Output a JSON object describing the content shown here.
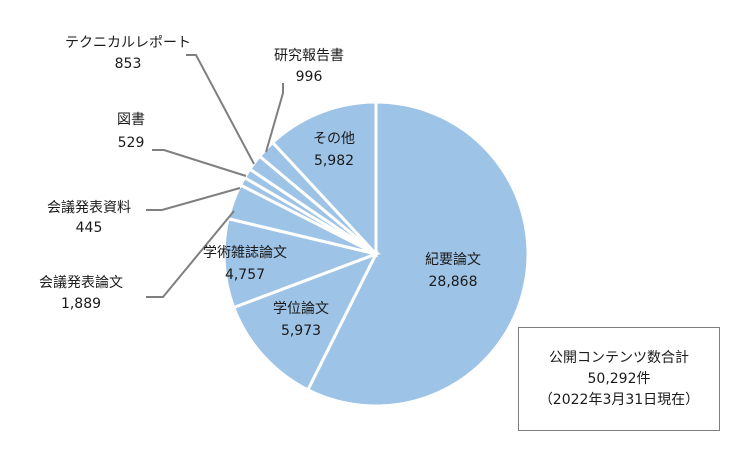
{
  "chart_data": {
    "type": "pie",
    "start_angle_deg": 0,
    "direction": "clockwise",
    "slices": [
      {
        "label": "紀要論文",
        "value": "28,868",
        "value_num": 28868
      },
      {
        "label": "学位論文",
        "value": "5,973",
        "value_num": 5973
      },
      {
        "label": "学術雑誌論文",
        "value": "4,757",
        "value_num": 4757
      },
      {
        "label": "会議発表論文",
        "value": "1,889",
        "value_num": 1889
      },
      {
        "label": "会議発表資料",
        "value": "445",
        "value_num": 445
      },
      {
        "label": "図書",
        "value": "529",
        "value_num": 529
      },
      {
        "label": "テクニカルレポート",
        "value": "853",
        "value_num": 853
      },
      {
        "label": "研究報告書",
        "value": "996",
        "value_num": 996
      },
      {
        "label": "その他",
        "value": "5,982",
        "value_num": 5982
      }
    ],
    "color": "#9dc3e6",
    "leader_color": "#7f7f7f"
  },
  "total_box": {
    "line1": "公開コンテンツ数合計",
    "line2": "50,292件",
    "line3": "（2022年3月31日現在）"
  }
}
